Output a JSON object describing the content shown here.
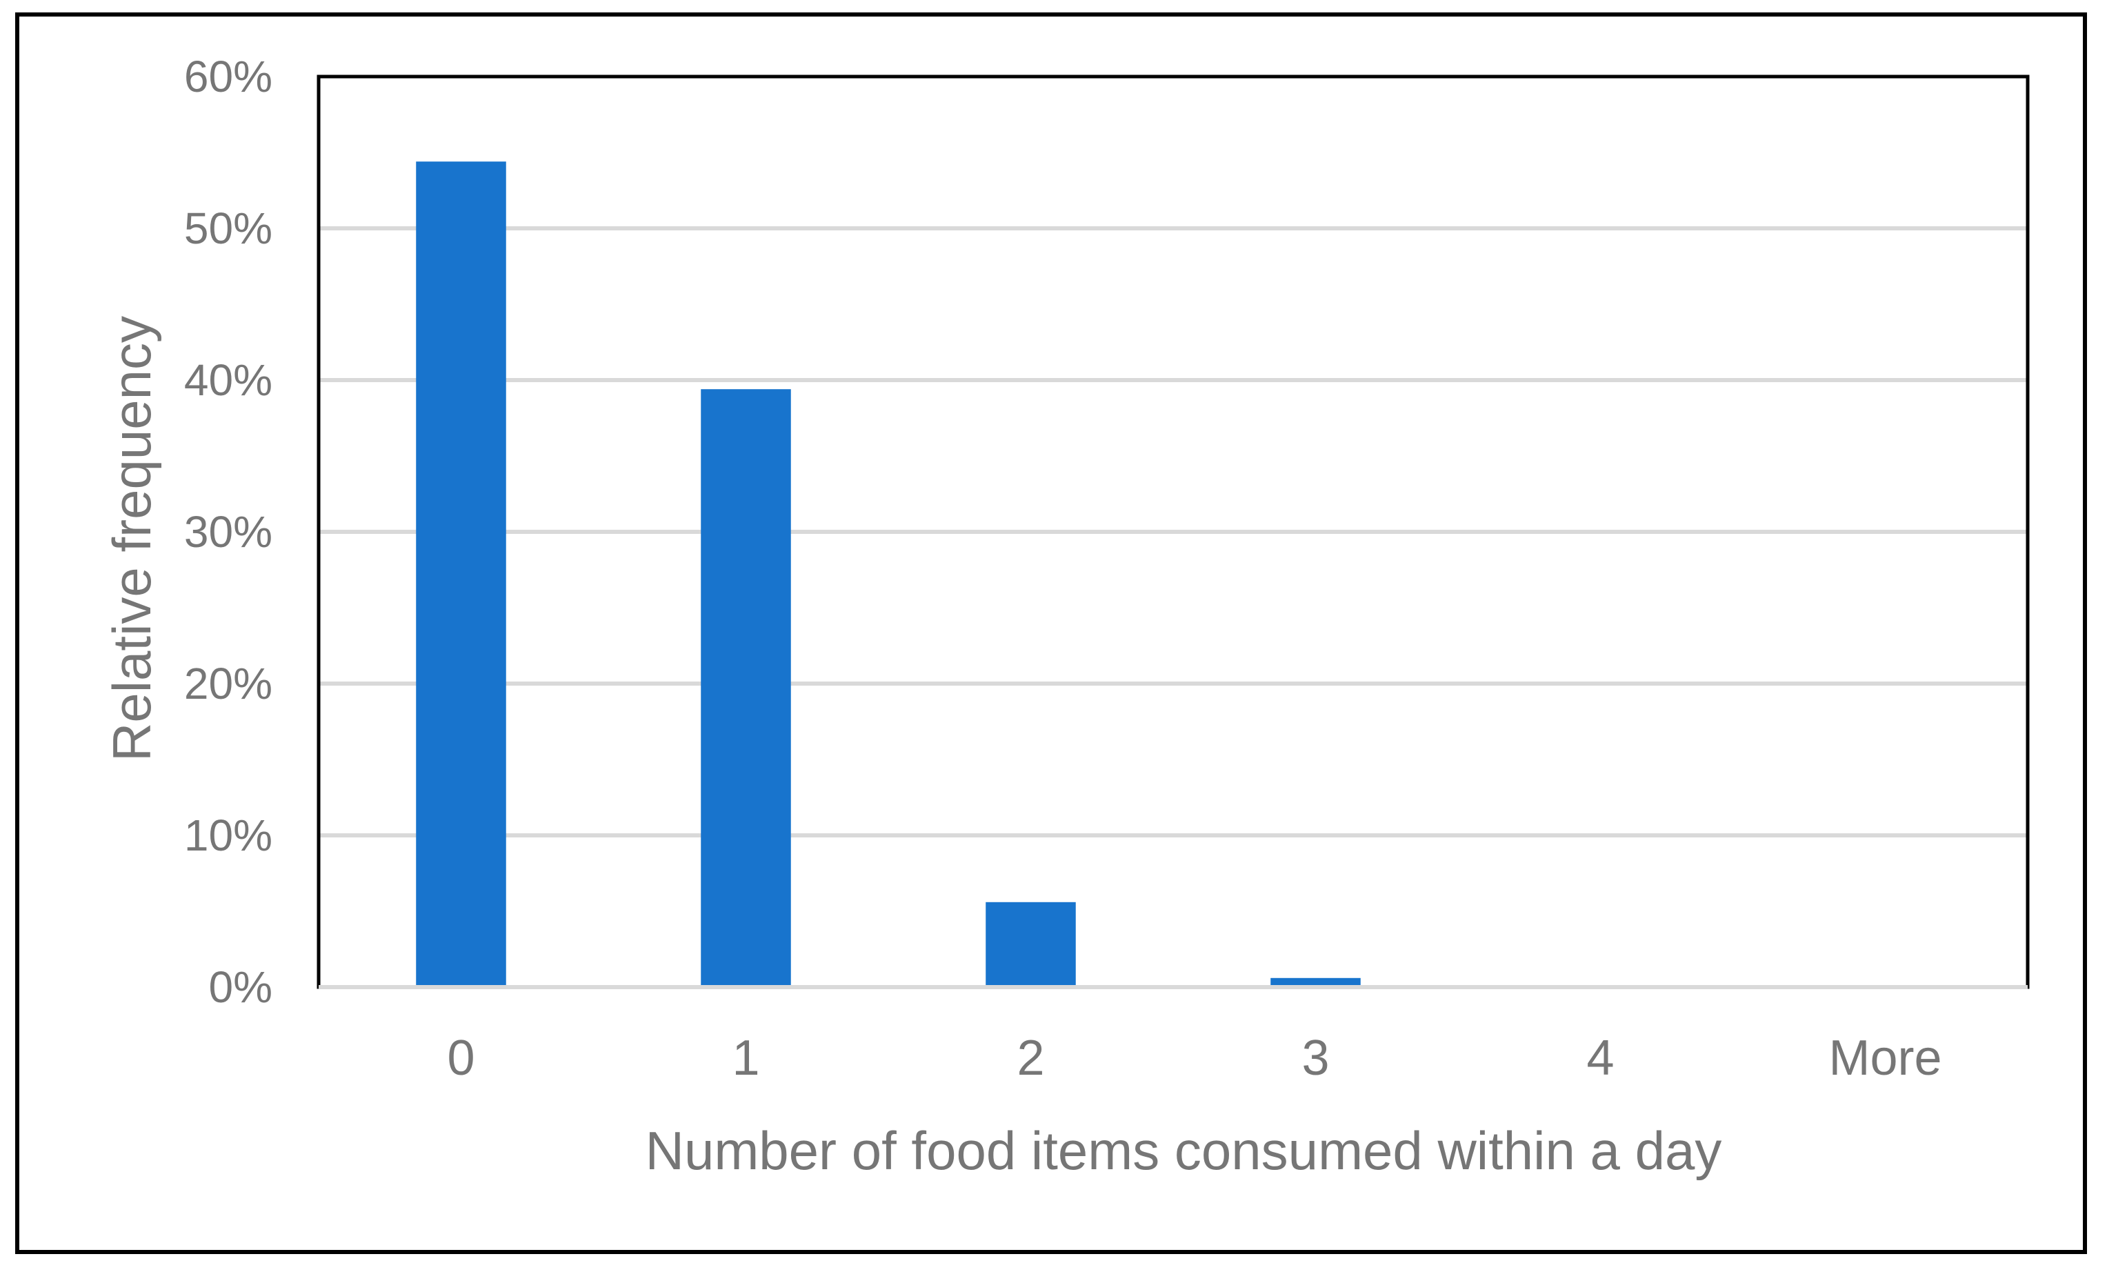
{
  "chart_data": {
    "type": "bar",
    "categories": [
      "0",
      "1",
      "2",
      "3",
      "4",
      "More"
    ],
    "values": [
      54.4,
      39.4,
      5.6,
      0.6,
      0,
      0
    ],
    "xlabel": "Number of food items consumed within a day",
    "ylabel": "Relative frequency",
    "ylim": [
      0,
      60
    ],
    "yticks": [
      0,
      10,
      20,
      30,
      40,
      50,
      60
    ],
    "ytick_labels": [
      "0%",
      "10%",
      "20%",
      "30%",
      "40%",
      "50%",
      "60%"
    ],
    "grid": true,
    "legend": "none",
    "bar_color": "#1874CD",
    "gridline_color": "#D9D9D9",
    "text_color": "#767676"
  }
}
